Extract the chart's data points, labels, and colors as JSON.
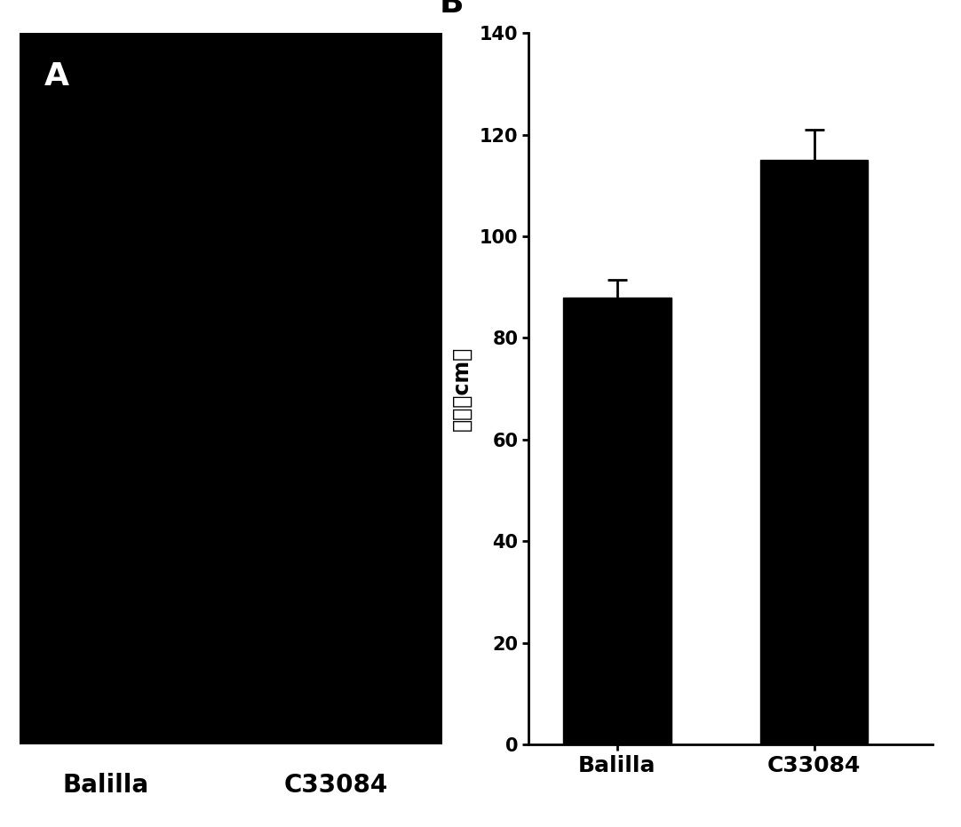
{
  "panel_A_bg": "#000000",
  "panel_A_label": "A",
  "panel_A_sublabels": [
    "Balilla",
    "C33084"
  ],
  "panel_B_label": "B",
  "bar_categories": [
    "Balilla",
    "C33084"
  ],
  "bar_values": [
    88.0,
    115.0
  ],
  "bar_errors": [
    3.5,
    6.0
  ],
  "bar_color": "#000000",
  "ylabel": "株高（cm）",
  "ylim": [
    0,
    140
  ],
  "yticks": [
    0,
    20,
    40,
    60,
    80,
    100,
    120,
    140
  ],
  "figure_bg": "#ffffff",
  "label_fontsize": 18,
  "tick_fontsize": 15,
  "ylabel_fontsize": 17,
  "bar_width": 0.55,
  "panel_label_fontsize": 26,
  "sublabel_fontsize": 20
}
